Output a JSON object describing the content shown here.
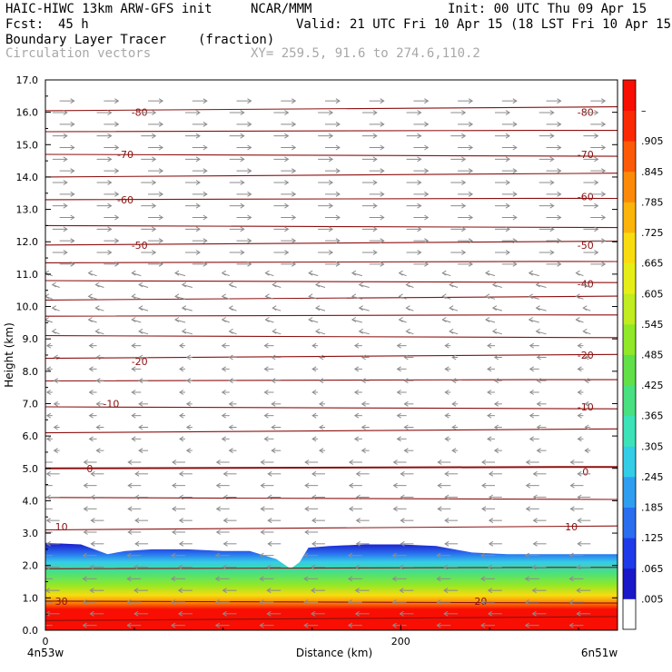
{
  "header": {
    "model": "HAIC-HIWC 13km ARW-GFS init",
    "org": "NCAR/MMM",
    "init": "Init: 00 UTC Thu 09 Apr 15",
    "fcst_label": "Fcst:",
    "fcst_value": "45 h",
    "valid": "Valid: 21 UTC Fri 10 Apr 15 (18 LST Fri 10 Apr 15)",
    "field_name": "Boundary Layer Tracer",
    "field_unit": "(fraction)",
    "vector_label": "Circulation vectors",
    "xy_label": "XY= 259.5, 91.6 to 274.6,110.2"
  },
  "colors": {
    "contour": "#8b1010",
    "vector": "#8c8c8c",
    "text_gray": "#a8a8a8",
    "scale": [
      "#ffffff",
      "#1a18c8",
      "#1f3ae8",
      "#2a6ef0",
      "#2f9ef0",
      "#34cde8",
      "#3ce3b8",
      "#48e080",
      "#62e048",
      "#90e828",
      "#c0ec20",
      "#e6ee18",
      "#f8dc10",
      "#fcb40a",
      "#fc8a08",
      "#fc5a06",
      "#fc2a04",
      "#f80e02"
    ]
  },
  "chart_data": {
    "type": "heatmap",
    "title": "Boundary Layer Tracer",
    "units": "(fraction)",
    "xlabel": "Distance (km)",
    "ylabel": "Height (km)",
    "xlim": [
      0,
      322
    ],
    "ylim": [
      0,
      17
    ],
    "x_ticks": [
      0,
      200
    ],
    "x_tick_labels": [
      "0",
      "200"
    ],
    "x_end_labels": [
      "4n53w",
      "6n51w"
    ],
    "y_ticks": [
      0,
      1,
      2,
      3,
      4,
      5,
      6,
      7,
      8,
      9,
      10,
      11,
      12,
      13,
      14,
      15,
      16,
      17
    ],
    "y_tick_labels": [
      "0.0",
      "1.0",
      "2.0",
      "3.0",
      "4.0",
      "5.0",
      "6.0",
      "7.0",
      "8.0",
      "9.0",
      "10.0",
      "11.0",
      "12.0",
      "13.0",
      "14.0",
      "15.0",
      "16.0",
      "17.0"
    ],
    "colorbar_labels": [
      ".005",
      ".065",
      ".125",
      ".185",
      ".245",
      ".305",
      ".365",
      ".425",
      ".485",
      ".545",
      ".605",
      ".665",
      ".725",
      ".785",
      ".845",
      ".905",
      "–"
    ],
    "contour_labels": [
      {
        "text": "-80",
        "x": 53,
        "y": 16.0
      },
      {
        "text": "-80",
        "x": 304,
        "y": 16.0
      },
      {
        "text": "-70",
        "x": 45,
        "y": 14.7
      },
      {
        "text": "-70",
        "x": 304,
        "y": 14.7
      },
      {
        "text": "-60",
        "x": 45,
        "y": 13.3
      },
      {
        "text": "-60",
        "x": 304,
        "y": 13.4
      },
      {
        "text": "-50",
        "x": 53,
        "y": 11.9
      },
      {
        "text": "-50",
        "x": 304,
        "y": 11.9
      },
      {
        "text": "-40",
        "x": 304,
        "y": 10.7
      },
      {
        "text": "-20",
        "x": 53,
        "y": 8.3
      },
      {
        "text": "-20",
        "x": 304,
        "y": 8.5
      },
      {
        "text": "-10",
        "x": 37,
        "y": 7.0
      },
      {
        "text": "-10",
        "x": 304,
        "y": 6.9
      },
      {
        "text": "0",
        "x": 25,
        "y": 5.0
      },
      {
        "text": "0",
        "x": 304,
        "y": 4.9
      },
      {
        "text": "10",
        "x": 9,
        "y": 3.2
      },
      {
        "text": "10",
        "x": 296,
        "y": 3.2
      },
      {
        "text": "20",
        "x": 245,
        "y": 0.9
      },
      {
        "text": "30",
        "x": 9,
        "y": 0.9
      }
    ],
    "pbl_top_km": [
      [
        0,
        2.7
      ],
      [
        20,
        2.65
      ],
      [
        35,
        2.35
      ],
      [
        45,
        2.45
      ],
      [
        60,
        2.5
      ],
      [
        80,
        2.5
      ],
      [
        100,
        2.45
      ],
      [
        115,
        2.45
      ],
      [
        130,
        2.2
      ],
      [
        138,
        1.9
      ],
      [
        143,
        2.1
      ],
      [
        148,
        2.55
      ],
      [
        160,
        2.6
      ],
      [
        180,
        2.65
      ],
      [
        200,
        2.65
      ],
      [
        220,
        2.6
      ],
      [
        240,
        2.4
      ],
      [
        260,
        2.35
      ],
      [
        280,
        2.35
      ],
      [
        300,
        2.35
      ],
      [
        322,
        2.35
      ]
    ]
  }
}
